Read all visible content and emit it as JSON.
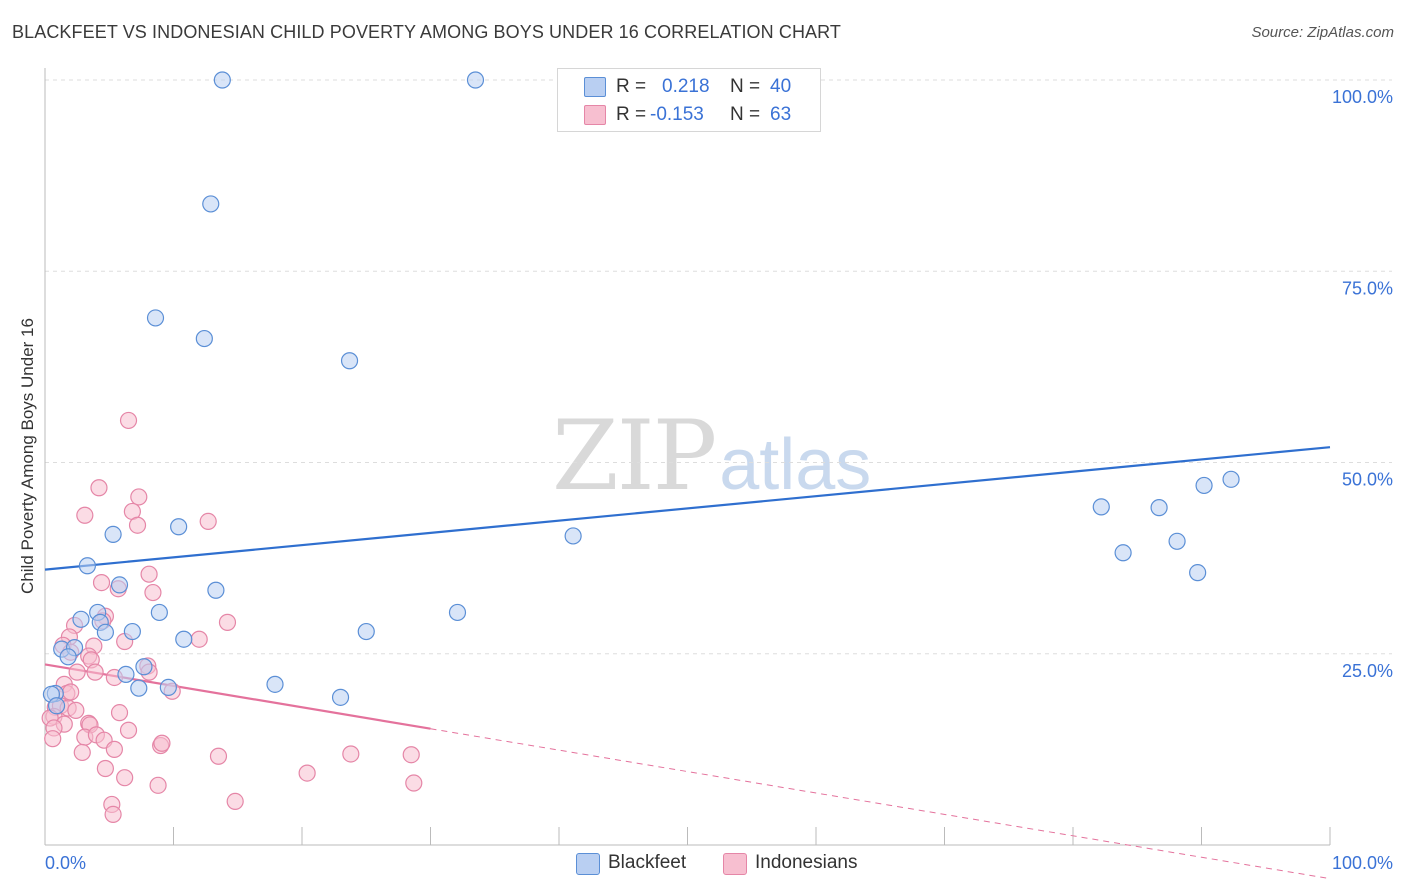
{
  "title": "BLACKFEET VS INDONESIAN CHILD POVERTY AMONG BOYS UNDER 16 CORRELATION CHART",
  "source": "Source: ZipAtlas.com",
  "watermark": {
    "zip": "ZIP",
    "atlas": "atlas"
  },
  "stats": {
    "blackfeet": {
      "r_label": "R =",
      "r_value": "0.218",
      "n_label": "N =",
      "n_value": "40"
    },
    "indonesians": {
      "r_label": "R =",
      "r_value": "-0.153",
      "n_label": "N =",
      "n_value": "63"
    }
  },
  "legend": {
    "blackfeet": "Blackfeet",
    "indonesians": "Indonesians"
  },
  "colors": {
    "blackfeet_fill": "#b9cff2",
    "blackfeet_stroke": "#5b8fd6",
    "blackfeet_line": "#2f6fcf",
    "indonesians_fill": "#f7bfd0",
    "indonesians_stroke": "#e586a7",
    "indonesians_line": "#e4729c",
    "axis_label": "#3a72d6",
    "grid": "#dddddd"
  },
  "chart_data": {
    "type": "scatter",
    "title": "BLACKFEET VS INDONESIAN CHILD POVERTY AMONG BOYS UNDER 16 CORRELATION CHART",
    "xlabel": "",
    "ylabel": "Child Poverty Among Boys Under 16",
    "xlim": [
      0,
      100
    ],
    "ylim": [
      0,
      100
    ],
    "x_tick_labels": [
      "0.0%",
      "100.0%"
    ],
    "y_ticks": [
      25,
      50,
      75,
      100
    ],
    "y_tick_labels": [
      "25.0%",
      "50.0%",
      "75.0%",
      "100.0%"
    ],
    "grid": true,
    "legend_position": "bottom-center",
    "series": [
      {
        "name": "Blackfeet",
        "points": [
          [
            13.8,
            100
          ],
          [
            33.5,
            100
          ],
          [
            12.9,
            83.8
          ],
          [
            8.6,
            68.9
          ],
          [
            12.4,
            66.2
          ],
          [
            23.7,
            63.3
          ],
          [
            5.3,
            40.6
          ],
          [
            10.4,
            41.6
          ],
          [
            41.1,
            40.4
          ],
          [
            3.3,
            36.5
          ],
          [
            5.8,
            34.0
          ],
          [
            13.3,
            33.3
          ],
          [
            4.1,
            30.4
          ],
          [
            8.9,
            30.4
          ],
          [
            32.1,
            30.4
          ],
          [
            2.8,
            29.5
          ],
          [
            4.3,
            29.1
          ],
          [
            4.7,
            27.8
          ],
          [
            6.8,
            27.9
          ],
          [
            10.8,
            26.9
          ],
          [
            25.0,
            27.9
          ],
          [
            1.3,
            25.6
          ],
          [
            2.3,
            25.8
          ],
          [
            1.8,
            24.6
          ],
          [
            7.7,
            23.3
          ],
          [
            6.3,
            22.3
          ],
          [
            7.3,
            20.5
          ],
          [
            9.6,
            20.6
          ],
          [
            17.9,
            21.0
          ],
          [
            23.0,
            19.3
          ],
          [
            0.8,
            19.8
          ],
          [
            0.5,
            19.7
          ],
          [
            0.9,
            18.2
          ],
          [
            82.2,
            44.2
          ],
          [
            86.7,
            44.1
          ],
          [
            83.9,
            38.2
          ],
          [
            88.1,
            39.7
          ],
          [
            90.2,
            47.0
          ],
          [
            92.3,
            47.8
          ],
          [
            89.7,
            35.6
          ]
        ]
      },
      {
        "name": "Indonesians",
        "points": [
          [
            6.5,
            55.5
          ],
          [
            4.2,
            46.7
          ],
          [
            7.3,
            45.5
          ],
          [
            3.1,
            43.1
          ],
          [
            6.8,
            43.6
          ],
          [
            7.2,
            41.8
          ],
          [
            12.7,
            42.3
          ],
          [
            8.1,
            35.4
          ],
          [
            4.4,
            34.3
          ],
          [
            5.7,
            33.5
          ],
          [
            8.4,
            33.0
          ],
          [
            4.7,
            29.9
          ],
          [
            4.5,
            29.3
          ],
          [
            2.3,
            28.7
          ],
          [
            14.2,
            29.1
          ],
          [
            1.9,
            27.2
          ],
          [
            6.2,
            26.6
          ],
          [
            12.0,
            26.9
          ],
          [
            1.4,
            26.1
          ],
          [
            3.8,
            26.0
          ],
          [
            2.0,
            25.2
          ],
          [
            3.4,
            24.7
          ],
          [
            3.6,
            24.2
          ],
          [
            8.0,
            23.4
          ],
          [
            3.9,
            22.6
          ],
          [
            2.5,
            22.6
          ],
          [
            8.1,
            22.6
          ],
          [
            1.5,
            21.0
          ],
          [
            1.7,
            19.8
          ],
          [
            2.0,
            20.0
          ],
          [
            5.4,
            21.9
          ],
          [
            9.9,
            20.1
          ],
          [
            0.8,
            18.0
          ],
          [
            1.2,
            18.2
          ],
          [
            1.8,
            17.9
          ],
          [
            0.7,
            16.8
          ],
          [
            2.4,
            17.6
          ],
          [
            5.8,
            17.3
          ],
          [
            0.4,
            16.6
          ],
          [
            1.5,
            15.8
          ],
          [
            3.4,
            15.9
          ],
          [
            3.5,
            15.7
          ],
          [
            0.7,
            15.3
          ],
          [
            3.1,
            14.1
          ],
          [
            4.0,
            14.4
          ],
          [
            4.6,
            13.7
          ],
          [
            6.5,
            15.0
          ],
          [
            9.0,
            13.0
          ],
          [
            9.1,
            13.3
          ],
          [
            0.6,
            13.9
          ],
          [
            5.4,
            12.5
          ],
          [
            2.9,
            12.1
          ],
          [
            23.8,
            11.9
          ],
          [
            28.5,
            11.8
          ],
          [
            4.7,
            10.0
          ],
          [
            6.2,
            8.8
          ],
          [
            20.4,
            9.4
          ],
          [
            8.8,
            7.8
          ],
          [
            28.7,
            8.1
          ],
          [
            5.2,
            5.3
          ],
          [
            14.8,
            5.7
          ],
          [
            5.3,
            4.0
          ],
          [
            13.5,
            11.6
          ]
        ]
      }
    ],
    "trend_lines": [
      {
        "series": "Blackfeet",
        "x": [
          0,
          100
        ],
        "y": [
          36.0,
          52.0
        ],
        "style": "solid"
      },
      {
        "series": "Indonesians",
        "x": [
          0,
          30
        ],
        "y": [
          23.6,
          15.2
        ],
        "style": "solid"
      },
      {
        "series": "Indonesians",
        "x": [
          30,
          100
        ],
        "y": [
          15.2,
          -4.4
        ],
        "style": "dashed"
      }
    ]
  }
}
